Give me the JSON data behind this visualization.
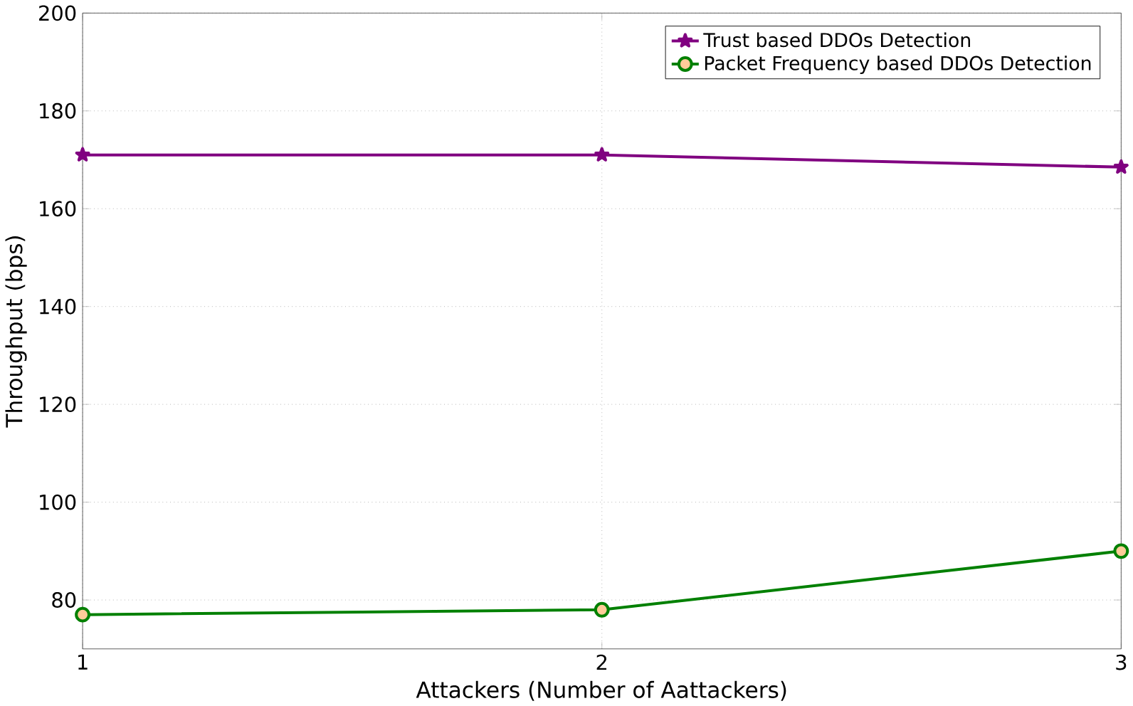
{
  "chart_data": {
    "type": "line",
    "xlabel": "Attackers (Number of Aattackers)",
    "ylabel": "Throughput (bps)",
    "x": [
      1,
      2,
      3
    ],
    "xlim": [
      1,
      3
    ],
    "xticks": [
      1,
      2,
      3
    ],
    "ylim": [
      70,
      200
    ],
    "yticks": [
      80,
      100,
      120,
      140,
      160,
      180,
      200
    ],
    "grid": true,
    "legend": "top right",
    "series": [
      {
        "name": "Trust based DDOs Detection",
        "color": "#800080",
        "marker": "star",
        "values": [
          171,
          171,
          168.5
        ]
      },
      {
        "name": "Packet Frequency based DDOs Detection",
        "color": "#008000",
        "marker": "circle",
        "values": [
          77,
          78,
          90
        ]
      }
    ]
  }
}
